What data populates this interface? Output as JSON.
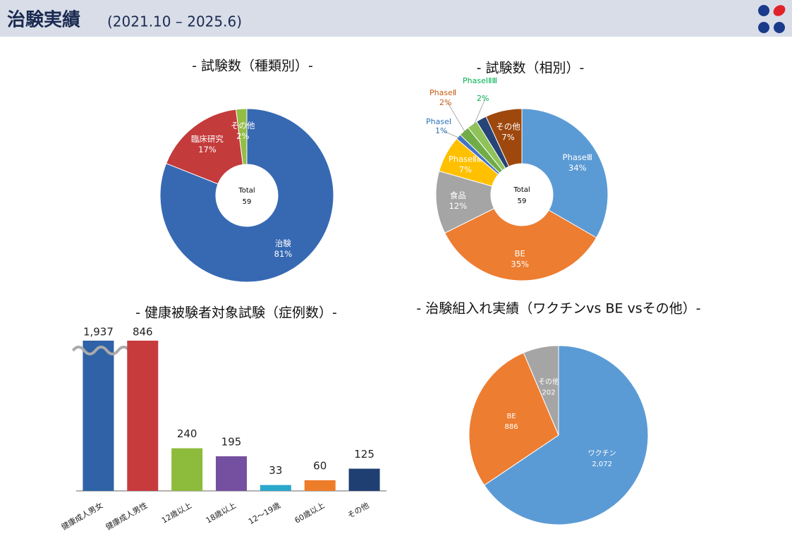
{
  "header": {
    "title": "治験実績",
    "subtitle": "(2021.10 – 2025.6)"
  },
  "chart_data": [
    {
      "type": "donut",
      "title": "- 試験数（種類別）-",
      "categories": [
        "治験",
        "臨床研究",
        "その他"
      ],
      "values": [
        81,
        17,
        2
      ],
      "value_labels": [
        "81%",
        "17%",
        "2%"
      ],
      "colors": [
        "#3769b3",
        "#c43b3c",
        "#94bd45"
      ],
      "center_label": "Total",
      "center_value": 59
    },
    {
      "type": "donut",
      "title": "- 試験数（相別）-",
      "categories": [
        "PhaseⅢ",
        "BE",
        "食品",
        "PhaseⅡⅢ",
        "PhaseⅠ",
        "PhaseⅡ",
        "PhaseⅠⅡⅢ",
        null,
        "その他"
      ],
      "values": [
        34,
        35,
        12,
        7,
        1,
        2,
        2,
        2,
        7
      ],
      "value_labels": [
        "34%",
        "35%",
        "12%",
        "7%",
        "1%",
        "2%",
        "2%",
        null,
        "7%"
      ],
      "colors": [
        "#5b9bd5",
        "#ed7d31",
        "#a5a5a5",
        "#ffc000",
        "#4472c4",
        "#70ad47",
        "#8fc35a",
        "#264478",
        "#9e480e"
      ],
      "center_label": "Total",
      "center_value": 59
    },
    {
      "type": "bar",
      "title": "- 健康被験者対象試験（症例数）-",
      "categories": [
        "健康成人男女",
        "健康成人男性",
        "12歳以上",
        "18歳以上",
        "12～19歳",
        "60歳以上",
        "その他"
      ],
      "values": [
        1937,
        846,
        240,
        195,
        33,
        60,
        125
      ],
      "value_labels": [
        "1,937",
        "846",
        "240",
        "195",
        "33",
        "60",
        "125"
      ],
      "colors": [
        "#2f62a6",
        "#c73b3d",
        "#8dbb3c",
        "#7650a0",
        "#2aa9cb",
        "#ee7d2a",
        "#1f3f72"
      ],
      "axis_break": true
    },
    {
      "type": "pie",
      "title": "- 治験組入れ実績（ワクチンvs BE vsその他）-",
      "categories": [
        "ワクチン",
        "BE",
        "その他"
      ],
      "values": [
        2072,
        886,
        202
      ],
      "value_labels": [
        "2,072",
        "886",
        "202"
      ],
      "colors": [
        "#5b9bd5",
        "#ed7d31",
        "#a5a5a5"
      ]
    }
  ]
}
